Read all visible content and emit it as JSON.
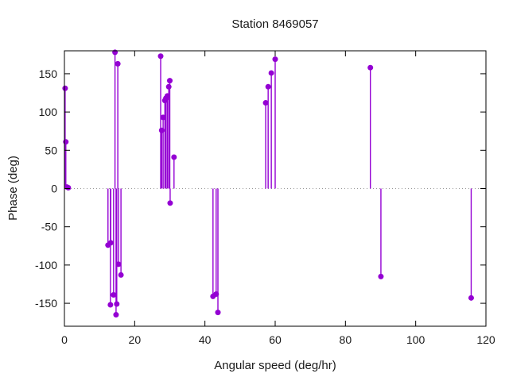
{
  "figure": {
    "background": "#ffffff",
    "accent": "#9400d3",
    "axis_color": "#000000",
    "zero_line_color": "#999999",
    "text_color": "#1a1a1a"
  },
  "chart_data": {
    "type": "scatter",
    "style": "stem-impulses-from-zero",
    "title": "Station 8469057",
    "xlabel": "Angular speed (deg/hr)",
    "ylabel": "Phase (deg)",
    "xlim": [
      0,
      120
    ],
    "ylim": [
      -180,
      180
    ],
    "xticks": [
      0,
      20,
      40,
      60,
      80,
      100,
      120
    ],
    "yticks": [
      -150,
      -100,
      -50,
      0,
      50,
      100,
      150
    ],
    "grid": false,
    "zero_line": true,
    "legend": "none",
    "marker": "filled-circle",
    "color": "#9400d3",
    "points": [
      {
        "x": 0.2,
        "y": 131
      },
      {
        "x": 0.4,
        "y": 61
      },
      {
        "x": 0.7,
        "y": 2
      },
      {
        "x": 1.1,
        "y": 1
      },
      {
        "x": 12.4,
        "y": -74
      },
      {
        "x": 13.1,
        "y": -152
      },
      {
        "x": 13.2,
        "y": -71
      },
      {
        "x": 14.0,
        "y": -139
      },
      {
        "x": 14.4,
        "y": 178
      },
      {
        "x": 14.7,
        "y": -165
      },
      {
        "x": 14.9,
        "y": -151
      },
      {
        "x": 15.2,
        "y": 163
      },
      {
        "x": 15.4,
        "y": -99
      },
      {
        "x": 16.1,
        "y": -113
      },
      {
        "x": 27.4,
        "y": 173
      },
      {
        "x": 27.7,
        "y": 76
      },
      {
        "x": 28.1,
        "y": 93
      },
      {
        "x": 28.6,
        "y": 115
      },
      {
        "x": 28.9,
        "y": 118
      },
      {
        "x": 29.3,
        "y": 121
      },
      {
        "x": 29.7,
        "y": 133
      },
      {
        "x": 30.0,
        "y": 141
      },
      {
        "x": 30.1,
        "y": -19
      },
      {
        "x": 31.2,
        "y": 41
      },
      {
        "x": 42.3,
        "y": -141
      },
      {
        "x": 43.2,
        "y": -138
      },
      {
        "x": 43.7,
        "y": -162
      },
      {
        "x": 57.3,
        "y": 112
      },
      {
        "x": 58.0,
        "y": 133
      },
      {
        "x": 58.9,
        "y": 151
      },
      {
        "x": 60.0,
        "y": 169
      },
      {
        "x": 87.1,
        "y": 158
      },
      {
        "x": 90.1,
        "y": -115
      },
      {
        "x": 115.8,
        "y": -143
      }
    ]
  }
}
